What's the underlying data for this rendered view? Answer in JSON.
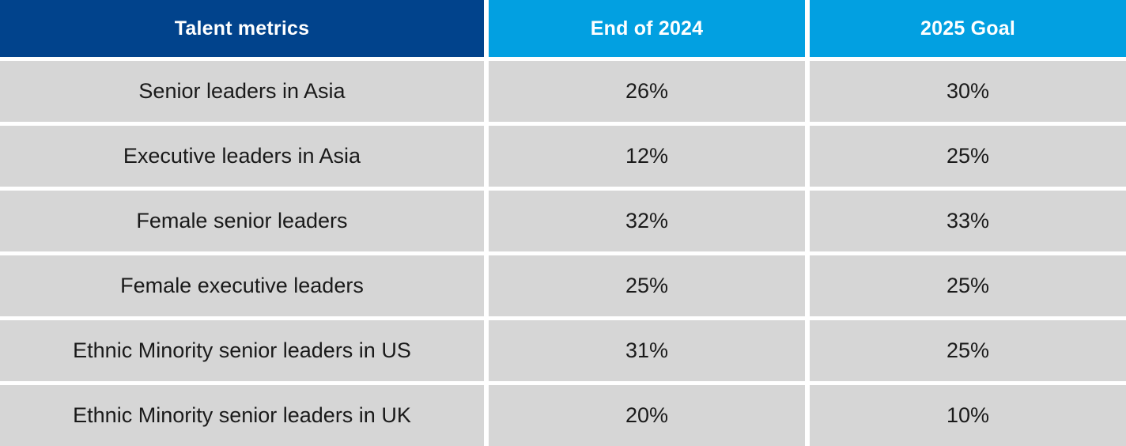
{
  "colors": {
    "header_dark": "#01438c",
    "header_light": "#02a0e1",
    "cell_background": "#d6d6d6",
    "text": "#1a1a1a"
  },
  "header": {
    "col1": "Talent metrics",
    "col2": "End of 2024",
    "col3": "2025 Goal"
  },
  "rows": [
    {
      "metric": "Senior leaders in Asia",
      "end_2024": "26%",
      "goal_2025": "30%"
    },
    {
      "metric": "Executive leaders in Asia",
      "end_2024": "12%",
      "goal_2025": "25%"
    },
    {
      "metric": "Female senior leaders",
      "end_2024": "32%",
      "goal_2025": "33%"
    },
    {
      "metric": "Female executive leaders",
      "end_2024": "25%",
      "goal_2025": "25%"
    },
    {
      "metric": "Ethnic Minority senior leaders in US",
      "end_2024": "31%",
      "goal_2025": "25%"
    },
    {
      "metric": "Ethnic Minority senior leaders in UK",
      "end_2024": "20%",
      "goal_2025": "10%"
    }
  ]
}
